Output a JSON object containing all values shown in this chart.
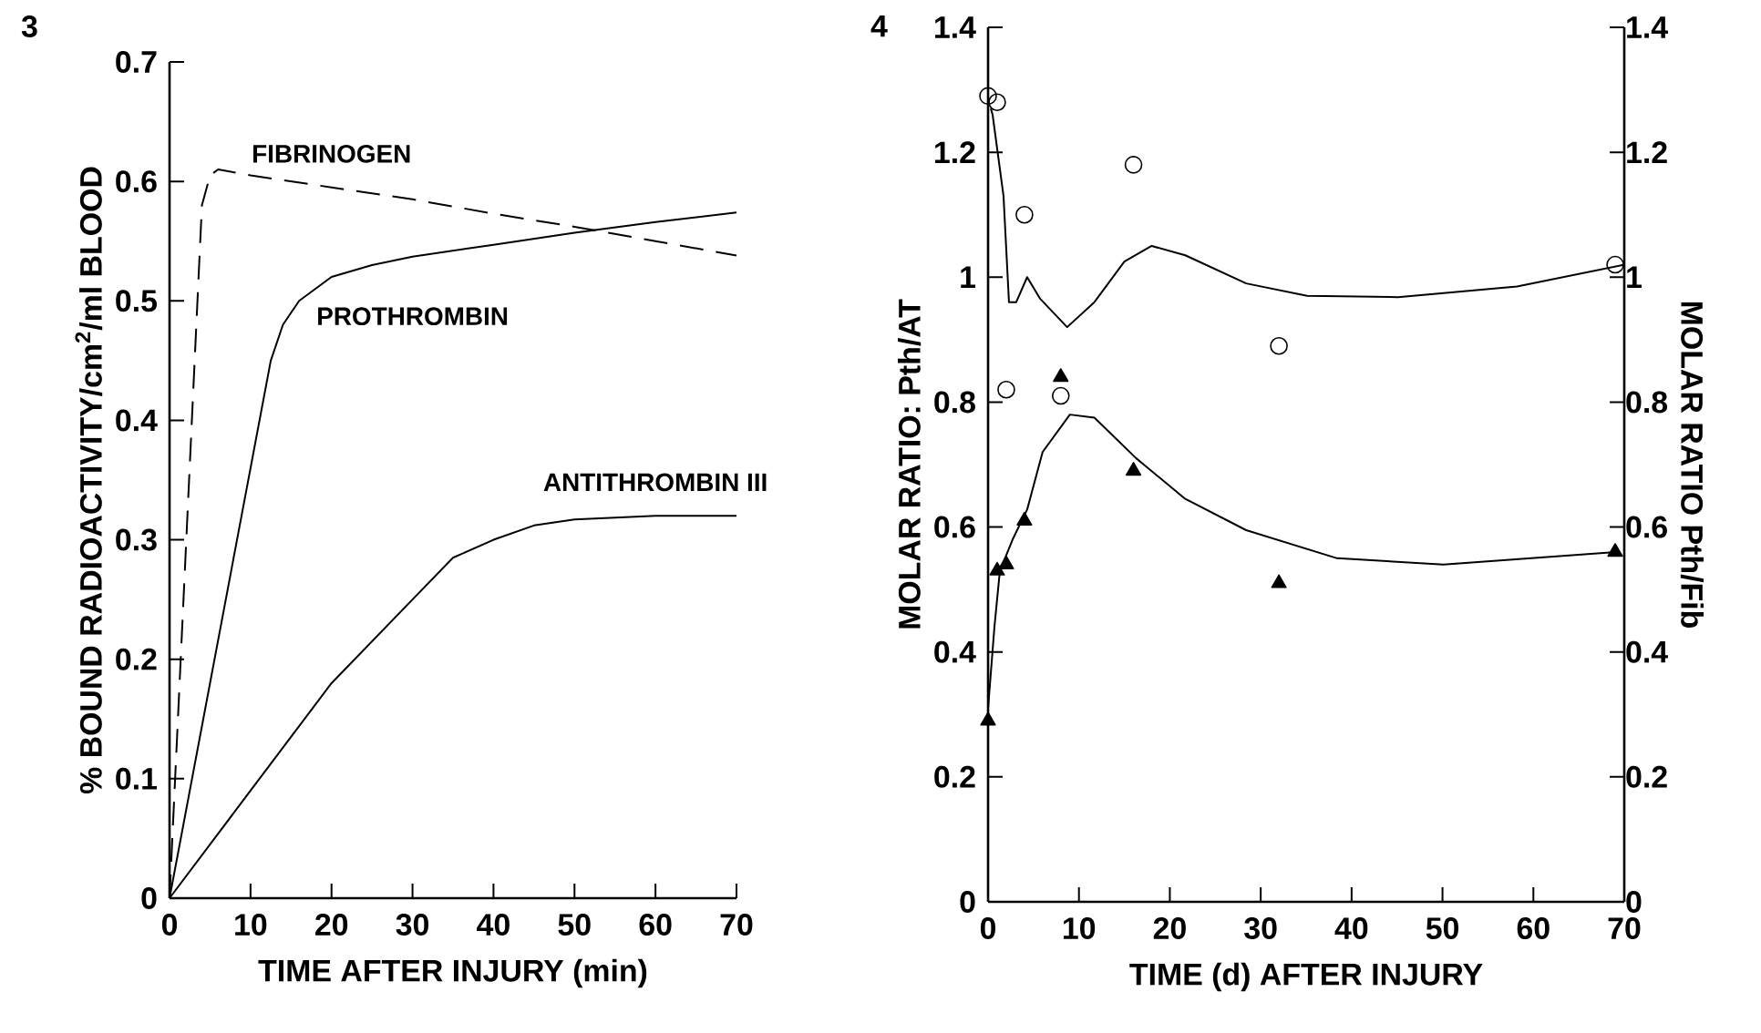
{
  "chart_data": [
    {
      "type": "line",
      "annotations": [
        "3"
      ],
      "xlabel": "TIME AFTER INJURY (min)",
      "ylabel": "% BOUND RADIOACTIVITY/cm$^{2}$/ml BLOOD",
      "xlim": [
        0,
        70
      ],
      "ylim": [
        0,
        0.7
      ],
      "xticks": [
        0,
        10,
        20,
        30,
        40,
        50,
        60,
        70
      ],
      "yticks": [
        0,
        0.1,
        0.2,
        0.3,
        0.4,
        0.5,
        0.6,
        0.7
      ],
      "series": [
        {
          "name": "FIBRINOGEN",
          "color": "#000000",
          "line_style": "dashed",
          "x": [
            0,
            4,
            5,
            6,
            10,
            20,
            30,
            40,
            50,
            60,
            70
          ],
          "values": [
            0,
            0.58,
            0.605,
            0.61,
            0.605,
            0.595,
            0.585,
            0.573,
            0.562,
            0.55,
            0.538
          ]
        },
        {
          "name": "PROTHROMBIN",
          "color": "#000000",
          "line_style": "solid",
          "x": [
            0,
            12.5,
            14,
            16,
            20,
            25,
            30,
            40,
            50,
            60,
            70
          ],
          "values": [
            0,
            0.45,
            0.48,
            0.5,
            0.52,
            0.53,
            0.537,
            0.547,
            0.557,
            0.566,
            0.574
          ]
        },
        {
          "name": "ANTITHROMBIN III",
          "color": "#000000",
          "line_style": "solid",
          "x": [
            0,
            10,
            20,
            30,
            35,
            40,
            45,
            50,
            60,
            70
          ],
          "values": [
            0,
            0.09,
            0.18,
            0.25,
            0.285,
            0.3,
            0.312,
            0.317,
            0.32,
            0.32
          ]
        }
      ]
    },
    {
      "type": "scatter",
      "annotations": [
        "4"
      ],
      "xlabel": "TIME (d) AFTER INJURY",
      "ylabel": "MOLAR RATIO: Pth/AT",
      "y2label": "MOLAR RATIO Pth/Fib",
      "xlim": [
        0,
        70
      ],
      "ylim": [
        0,
        1.4
      ],
      "y2lim": [
        0,
        1.4
      ],
      "xticks": [
        0,
        10,
        20,
        30,
        40,
        50,
        60,
        70
      ],
      "yticks": [
        0,
        0.2,
        0.4,
        0.6,
        0.8,
        1,
        1.2,
        1.4
      ],
      "y2ticks": [
        0,
        0.2,
        0.4,
        0.6,
        0.8,
        1,
        1.2,
        1.4
      ],
      "series": [
        {
          "type": "scatter",
          "marker": "circle",
          "color": "#000000",
          "x": [
            0,
            1,
            2,
            4,
            8,
            16,
            32,
            69
          ],
          "values": [
            1.29,
            1.28,
            0.82,
            1.1,
            0.81,
            1.18,
            0.89,
            1.02
          ]
        },
        {
          "type": "scatter",
          "marker": "triangle",
          "axis": "y2",
          "color": "#000000",
          "x": [
            0,
            1,
            2,
            4,
            8,
            16,
            32,
            69
          ],
          "values": [
            0.29,
            0.53,
            0.54,
            0.61,
            0.84,
            0.69,
            0.51,
            0.56
          ]
        },
        {
          "type": "line",
          "color": "#000000",
          "x": [
            0.3,
            0.5,
            1.7,
            2.3,
            3.1,
            4.3,
            5.7,
            8.7,
            11.7,
            15,
            18,
            21.7,
            28.4,
            35.1,
            45.1,
            58.2,
            70
          ],
          "values": [
            1.27,
            1.26,
            1.13,
            0.96,
            0.96,
            1.0,
            0.966,
            0.92,
            0.96,
            1.025,
            1.05,
            1.035,
            0.99,
            0.97,
            0.968,
            0.985,
            1.02
          ]
        },
        {
          "type": "line",
          "axis": "y2",
          "color": "#000000",
          "x": [
            0,
            0.7,
            1.3,
            2.7,
            4.3,
            6,
            9,
            11.7,
            16.3,
            21.7,
            28.4,
            38.4,
            50.1,
            69.1
          ],
          "values": [
            0.31,
            0.44,
            0.53,
            0.58,
            0.628,
            0.72,
            0.78,
            0.775,
            0.71,
            0.645,
            0.595,
            0.55,
            0.54,
            0.56
          ]
        }
      ]
    }
  ]
}
